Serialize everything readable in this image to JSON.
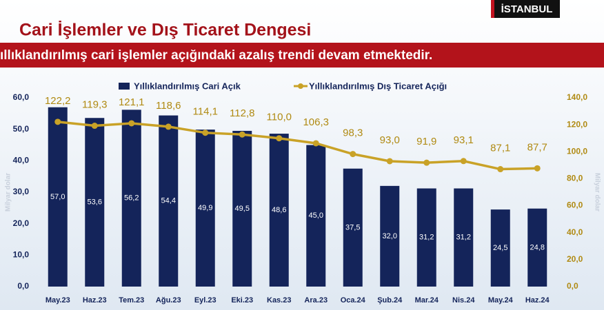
{
  "chart_data": {
    "type": "bar",
    "badge": "İSTANBUL",
    "title": "Cari İşlemler ve Dış Ticaret Dengesi",
    "subtitle": "ıllıklandırılmış cari işlemler açığındaki azalış trendi devam etmektedir.",
    "y_label": "Milyar dolar",
    "y2_label": "Milyar dolar",
    "categories": [
      "May.23",
      "Haz.23",
      "Tem.23",
      "Ağu.23",
      "Eyl.23",
      "Eki.23",
      "Kas.23",
      "Ara.23",
      "Oca.24",
      "Şub.24",
      "Mar.24",
      "Nis.24",
      "May.24",
      "Haz.24"
    ],
    "series": [
      {
        "name": "Yıllıklandırılmış Cari Açık",
        "type": "bar",
        "color": "#14245a",
        "values": [
          57.0,
          53.6,
          56.2,
          54.4,
          49.9,
          49.5,
          48.6,
          45.0,
          37.5,
          32.0,
          31.2,
          31.2,
          24.5,
          24.8
        ],
        "value_labels": [
          "57,0",
          "53,6",
          "56,2",
          "54,4",
          "49,9",
          "49,5",
          "48,6",
          "45,0",
          "37,5",
          "32,0",
          "31,2",
          "31,2",
          "24,5",
          "24,8"
        ]
      },
      {
        "name": "Yıllıklandırılmış Dış Ticaret Açığı",
        "type": "line",
        "axis": "y2",
        "color": "#c9a227",
        "values": [
          122.2,
          119.3,
          121.1,
          118.6,
          114.1,
          112.8,
          110.0,
          106.3,
          98.3,
          93.0,
          91.9,
          93.1,
          87.1,
          87.7
        ],
        "value_labels": [
          "122,2",
          "119,3",
          "121,1",
          "118,6",
          "114,1",
          "112,8",
          "110,0",
          "106,3",
          "98,3",
          "93,0",
          "91,9",
          "93,1",
          "87,1",
          "87,7"
        ]
      }
    ],
    "ylim": [
      0,
      60
    ],
    "yticks": [
      {
        "value": 0,
        "label": "0,0"
      },
      {
        "value": 10,
        "label": "10,0"
      },
      {
        "value": 20,
        "label": "20,0"
      },
      {
        "value": 30,
        "label": "30,0"
      },
      {
        "value": 40,
        "label": "40,0"
      },
      {
        "value": 50,
        "label": "50,0"
      },
      {
        "value": 60,
        "label": "60,0"
      }
    ],
    "y2lim": [
      0,
      140
    ],
    "y2ticks": [
      {
        "value": 0,
        "label": "0,0"
      },
      {
        "value": 20,
        "label": "20,0"
      },
      {
        "value": 40,
        "label": "40,0"
      },
      {
        "value": 60,
        "label": "60,0"
      },
      {
        "value": 80,
        "label": "80,0"
      },
      {
        "value": 100,
        "label": "100,0"
      },
      {
        "value": 120,
        "label": "120,0"
      },
      {
        "value": 140,
        "label": "140,0"
      }
    ],
    "grid": false
  }
}
